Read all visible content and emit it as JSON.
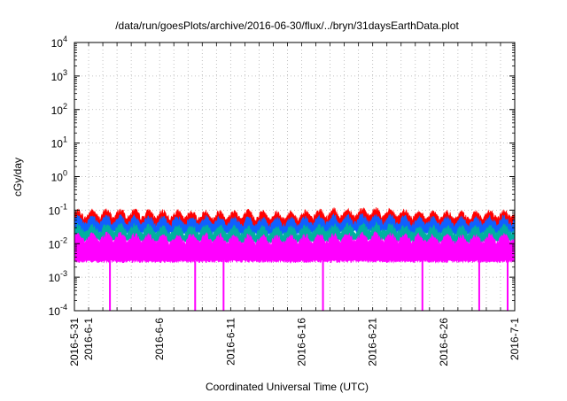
{
  "chart_data": {
    "type": "line",
    "title": "/data/run/goesPlots/archive/2016-06-30/flux/../bryn/31daysEarthData.plot",
    "xlabel": "Coordinated Universal Time (UTC)",
    "ylabel": "cGy/day",
    "yscale": "log",
    "ylim": [
      0.0001,
      10000
    ],
    "xlim": [
      "2016-05-31",
      "2016-07-01"
    ],
    "grid": true,
    "x_ticks": [
      {
        "label": "2016-5-31",
        "date": "2016-05-31"
      },
      {
        "label": "2016-6-1",
        "date": "2016-06-01"
      },
      {
        "label": "2016-6-6",
        "date": "2016-06-06"
      },
      {
        "label": "2016-6-11",
        "date": "2016-06-11"
      },
      {
        "label": "2016-6-16",
        "date": "2016-06-16"
      },
      {
        "label": "2016-6-21",
        "date": "2016-06-21"
      },
      {
        "label": "2016-6-26",
        "date": "2016-06-26"
      },
      {
        "label": "2016-7-1",
        "date": "2016-07-01"
      }
    ],
    "y_ticks": [
      {
        "base": "10",
        "exp": "-4",
        "value": 0.0001
      },
      {
        "base": "10",
        "exp": "-3",
        "value": 0.001
      },
      {
        "base": "10",
        "exp": "-2",
        "value": 0.01
      },
      {
        "base": "10",
        "exp": "-1",
        "value": 0.1
      },
      {
        "base": "10",
        "exp": "0",
        "value": 1
      },
      {
        "base": "10",
        "exp": "1",
        "value": 10
      },
      {
        "base": "10",
        "exp": "2",
        "value": 100
      },
      {
        "base": "10",
        "exp": "3",
        "value": 1000
      },
      {
        "base": "10",
        "exp": "4",
        "value": 10000
      }
    ],
    "series": [
      {
        "color": "#ff0000",
        "x": [
          "2016-05-31",
          "2016-06-03",
          "2016-06-06",
          "2016-06-09",
          "2016-06-12",
          "2016-06-15",
          "2016-06-18",
          "2016-06-21",
          "2016-06-24",
          "2016-06-27",
          "2016-06-30",
          "2016-07-01"
        ],
        "y": [
          0.06,
          0.065,
          0.06,
          0.058,
          0.06,
          0.055,
          0.065,
          0.07,
          0.06,
          0.055,
          0.06,
          0.065
        ]
      },
      {
        "color": "#1060ff",
        "x": [
          "2016-05-31",
          "2016-06-03",
          "2016-06-06",
          "2016-06-09",
          "2016-06-12",
          "2016-06-15",
          "2016-06-18",
          "2016-06-21",
          "2016-06-24",
          "2016-06-27",
          "2016-06-30",
          "2016-07-01"
        ],
        "y": [
          0.04,
          0.042,
          0.038,
          0.04,
          0.037,
          0.036,
          0.042,
          0.045,
          0.039,
          0.037,
          0.04,
          0.041
        ]
      },
      {
        "color": "#00b0a0",
        "x": [
          "2016-05-31",
          "2016-06-03",
          "2016-06-06",
          "2016-06-09",
          "2016-06-12",
          "2016-06-15",
          "2016-06-18",
          "2016-06-21",
          "2016-06-24",
          "2016-06-27",
          "2016-06-30",
          "2016-07-01"
        ],
        "y": [
          0.022,
          0.024,
          0.021,
          0.022,
          0.02,
          0.02,
          0.023,
          0.025,
          0.021,
          0.02,
          0.022,
          0.023
        ]
      },
      {
        "color": "#ff00ff",
        "x": [
          "2016-05-31",
          "2016-06-03",
          "2016-06-06",
          "2016-06-09",
          "2016-06-12",
          "2016-06-15",
          "2016-06-18",
          "2016-06-21",
          "2016-06-24",
          "2016-06-27",
          "2016-06-30",
          "2016-07-01"
        ],
        "y": [
          0.012,
          0.013,
          0.011,
          0.012,
          0.011,
          0.011,
          0.012,
          0.013,
          0.012,
          0.011,
          0.012,
          0.012
        ],
        "floor": 0.003
      },
      {
        "color": "#ff00ff",
        "x": [
          "2016-06-02",
          "2016-06-08",
          "2016-06-10",
          "2016-06-17",
          "2016-06-24",
          "2016-06-28",
          "2016-06-30"
        ],
        "y": [
          0.0001,
          0.0001,
          0.0001,
          0.0001,
          0.0001,
          0.0001,
          0.0001
        ]
      }
    ]
  }
}
